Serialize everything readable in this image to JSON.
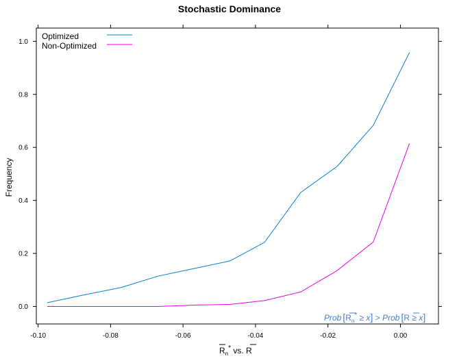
{
  "chart_data": {
    "type": "line",
    "title": "Stochastic Dominance",
    "ylabel": "Frequency",
    "xlabel_parts": {
      "main_a": "R",
      "sub": "n",
      "sup": "*",
      "mid": " vs. ",
      "main_b": "R"
    },
    "xlim": [
      -0.1005,
      0.0105
    ],
    "ylim": [
      -0.066,
      1.05
    ],
    "x_ticks": [
      -0.1,
      -0.08,
      -0.06,
      -0.04,
      -0.02,
      0.0
    ],
    "x_tick_labels": [
      "-0.10",
      "-0.08",
      "-0.06",
      "-0.04",
      "-0.02",
      "0.00"
    ],
    "y_ticks": [
      0.0,
      0.2,
      0.4,
      0.6,
      0.8,
      1.0
    ],
    "y_tick_labels": [
      "0.0",
      "0.2",
      "0.4",
      "0.6",
      "0.8",
      "1.0"
    ],
    "grid": false,
    "legend_position": "top-left",
    "series": [
      {
        "name": "Optimized",
        "color": "#0080d0",
        "x": [
          -0.0975,
          -0.0875,
          -0.077,
          -0.067,
          -0.057,
          -0.047,
          -0.0375,
          -0.0275,
          -0.0175,
          -0.0075,
          0.0025
        ],
        "y": [
          0.014,
          0.043,
          0.072,
          0.114,
          0.143,
          0.172,
          0.242,
          0.43,
          0.528,
          0.683,
          0.958
        ]
      },
      {
        "name": "Non-Optimized",
        "color": "#e600e6",
        "x": [
          -0.0975,
          -0.0925,
          -0.077,
          -0.067,
          -0.057,
          -0.047,
          -0.0375,
          -0.0275,
          -0.0175,
          -0.0075,
          0.0025
        ],
        "y": [
          0.0,
          0.0,
          0.0,
          0.0,
          0.005,
          0.008,
          0.022,
          0.055,
          0.135,
          0.243,
          0.615
        ]
      }
    ],
    "annotation": {
      "prob_left": "Prob",
      "left_main": "R",
      "left_sub": "n",
      "left_sup": "*",
      "ge": " ≥ ",
      "x_var": "x",
      "gt": " > ",
      "prob_right": "Prob",
      "right_main": "R"
    }
  }
}
